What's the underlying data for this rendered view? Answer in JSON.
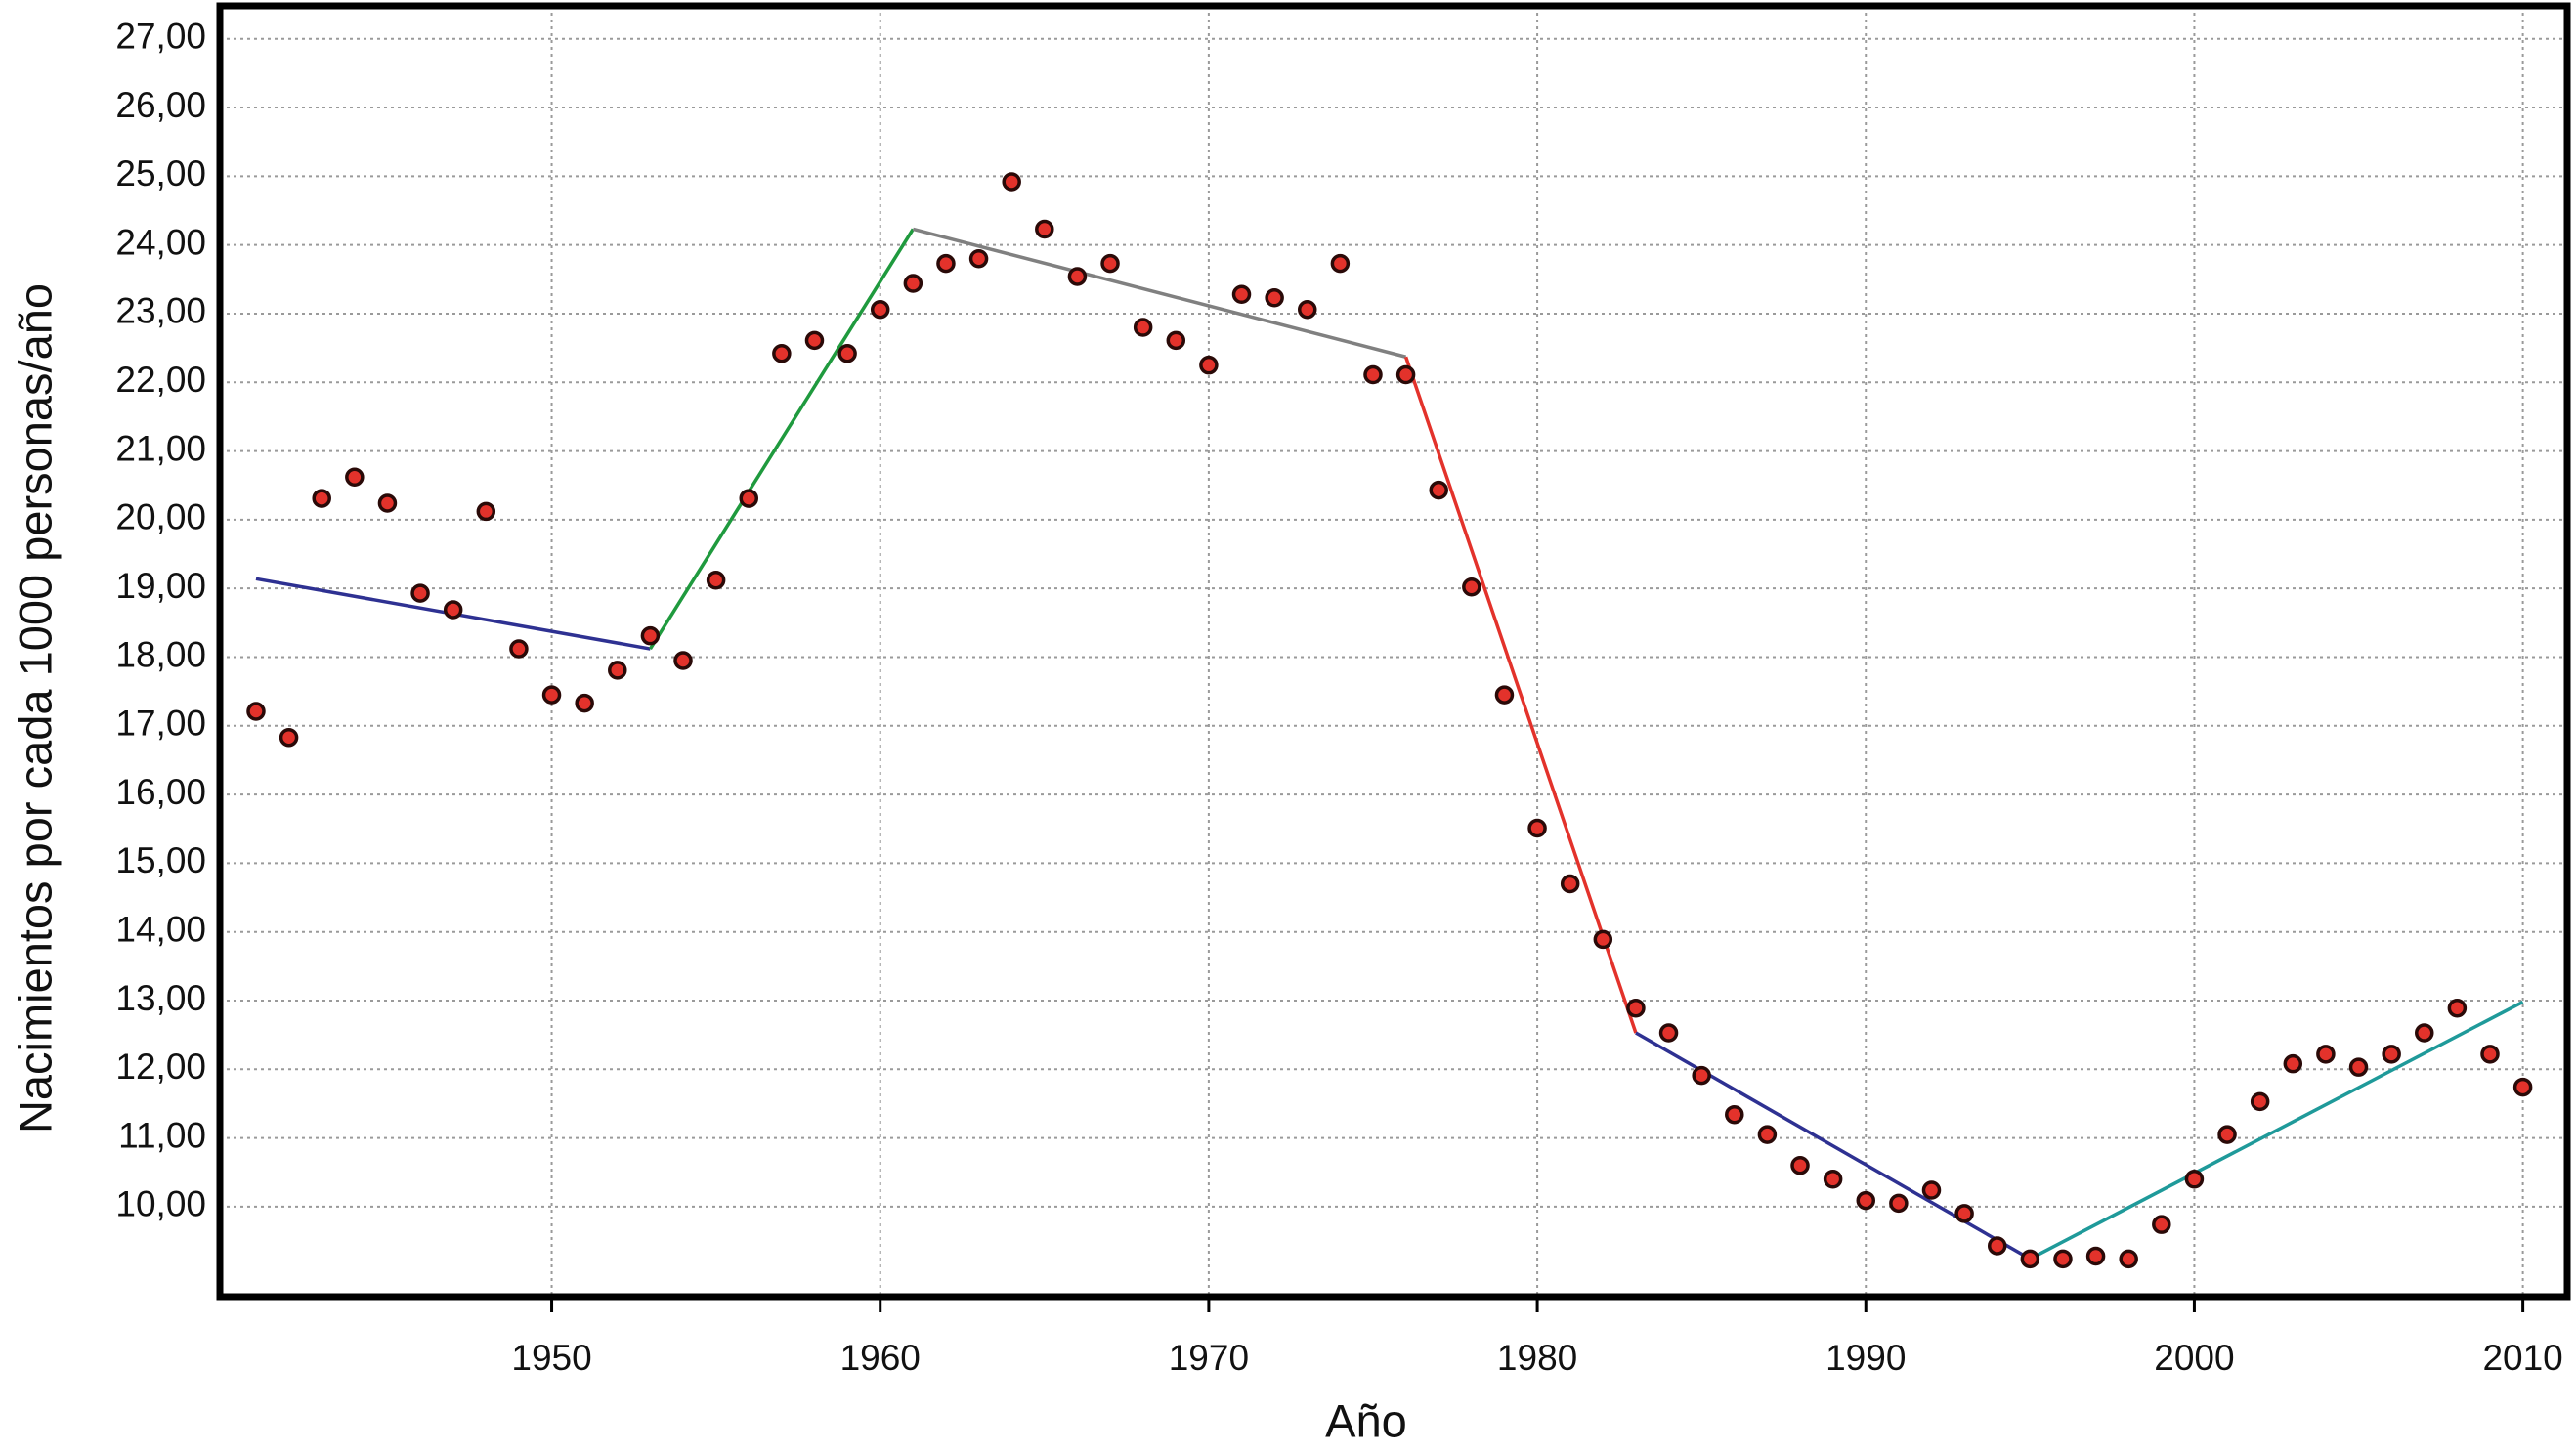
{
  "chart_data": {
    "type": "scatter",
    "x_label": "Año",
    "y_label": "Nacimientos por cada 1000 personas/año",
    "x": [
      1941,
      1942,
      1943,
      1944,
      1945,
      1946,
      1947,
      1948,
      1949,
      1950,
      1951,
      1952,
      1953,
      1954,
      1955,
      1956,
      1957,
      1958,
      1959,
      1960,
      1961,
      1962,
      1963,
      1964,
      1965,
      1966,
      1967,
      1968,
      1969,
      1970,
      1971,
      1972,
      1973,
      1974,
      1975,
      1976,
      1977,
      1978,
      1979,
      1980,
      1981,
      1982,
      1983,
      1984,
      1985,
      1986,
      1987,
      1988,
      1989,
      1990,
      1991,
      1992,
      1993,
      1994,
      1995,
      1996,
      1997,
      1998,
      1999,
      2000,
      2001,
      2002,
      2003,
      2004,
      2005,
      2006,
      2007,
      2008,
      2009,
      2010
    ],
    "values": [
      17.21,
      16.83,
      20.31,
      20.62,
      20.24,
      18.93,
      18.69,
      20.12,
      18.12,
      17.45,
      17.33,
      17.81,
      18.31,
      17.95,
      19.12,
      20.31,
      22.42,
      22.61,
      22.42,
      23.06,
      23.44,
      23.73,
      23.8,
      24.92,
      24.23,
      23.54,
      23.73,
      22.8,
      22.61,
      22.25,
      23.28,
      23.23,
      23.06,
      23.73,
      22.11,
      22.11,
      20.43,
      19.02,
      17.45,
      15.51,
      14.7,
      13.89,
      12.89,
      12.53,
      11.91,
      11.34,
      11.05,
      10.6,
      10.4,
      10.09,
      10.05,
      10.24,
      9.9,
      9.43,
      9.24,
      9.24,
      9.28,
      9.24,
      9.74,
      10.4,
      11.05,
      11.53,
      12.08,
      12.22,
      12.03,
      12.22,
      12.53,
      12.89,
      12.22,
      11.74
    ],
    "marker_color": "#e3322b",
    "trend_lines": [
      {
        "color": "#2e3192",
        "x": [
          1941,
          1953
        ],
        "values": [
          19.14,
          18.12
        ]
      },
      {
        "color": "#1f9a3e",
        "x": [
          1953,
          1961
        ],
        "values": [
          18.12,
          24.23
        ]
      },
      {
        "color": "#808080",
        "x": [
          1961,
          1976
        ],
        "values": [
          24.23,
          22.37
        ]
      },
      {
        "color": "#e3322b",
        "x": [
          1976,
          1983
        ],
        "values": [
          22.37,
          12.53
        ]
      },
      {
        "color": "#2e3192",
        "x": [
          1983,
          1995
        ],
        "values": [
          12.53,
          9.24
        ]
      },
      {
        "color": "#1f9a9a",
        "x": [
          1995,
          2010
        ],
        "values": [
          9.24,
          12.98
        ]
      }
    ],
    "xlim": [
      1939.9,
      2011.35
    ],
    "ylim": [
      8.69,
      27.48
    ],
    "xticks": [
      1950,
      1960,
      1970,
      1980,
      1990,
      2000,
      2010
    ],
    "yticks": [
      {
        "value": 10,
        "label": "10,00"
      },
      {
        "value": 11,
        "label": "11,00"
      },
      {
        "value": 12,
        "label": "12,00"
      },
      {
        "value": 13,
        "label": "13,00"
      },
      {
        "value": 14,
        "label": "14,00"
      },
      {
        "value": 15,
        "label": "15,00"
      },
      {
        "value": 16,
        "label": "16,00"
      },
      {
        "value": 17,
        "label": "17,00"
      },
      {
        "value": 18,
        "label": "18,00"
      },
      {
        "value": 19,
        "label": "19,00"
      },
      {
        "value": 20,
        "label": "20,00"
      },
      {
        "value": 21,
        "label": "21,00"
      },
      {
        "value": 22,
        "label": "22,00"
      },
      {
        "value": 23,
        "label": "23,00"
      },
      {
        "value": 24,
        "label": "24,00"
      },
      {
        "value": 25,
        "label": "25,00"
      },
      {
        "value": 26,
        "label": "26,00"
      },
      {
        "value": 27,
        "label": "27,00"
      }
    ],
    "grid": true
  }
}
